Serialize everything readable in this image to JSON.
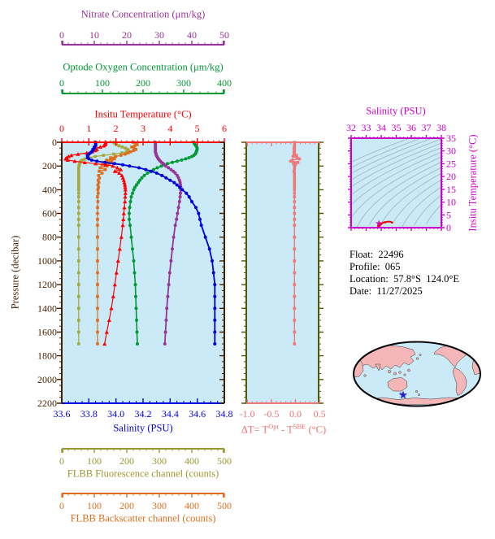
{
  "figure": {
    "axis_titles": {
      "nitrate": "Nitrate Concentration (μm/kg)",
      "oxygen": "Optode Oxygen Concentration (μm/kg)",
      "temperature": "Insitu Temperature (°C)",
      "salinity": "Salinity (PSU)",
      "fluorescence": "FLBB Fluorescence channel (counts)",
      "backscatter": "FLBB Backscatter channel (counts)",
      "pressure": "Pressure (decibar)",
      "ts_salinity": "Salinity (PSU)",
      "ts_temperature": "Insitu Temperature (°C)",
      "delta_t": {
        "p1": "ΔT= T",
        "sup1": "Opt",
        "p2": " - T",
        "sup2": "SBE",
        "p3": " (°C)"
      }
    },
    "info": {
      "lines": [
        "Float:  22496",
        "Profile:  065",
        "Location:  57.8°S  124.0°E",
        "Date:  11/27/2025"
      ]
    }
  },
  "chart_data": {
    "type": "line",
    "title": "Profiling float vertical profiles vs pressure with T-S diagram and location map",
    "pressure_axis": {
      "label": "Pressure (decibar)",
      "min": 0,
      "max": 2200,
      "major_ticks": [
        0,
        200,
        400,
        600,
        800,
        1000,
        1200,
        1400,
        1600,
        1800,
        2000,
        2200
      ],
      "minor_step": 50,
      "color": "#451F00"
    },
    "plot_bg": "#C9EAF6",
    "pressures": [
      0,
      10,
      20,
      30,
      40,
      50,
      60,
      70,
      80,
      90,
      100,
      110,
      120,
      130,
      140,
      150,
      160,
      170,
      180,
      190,
      200,
      215,
      230,
      245,
      260,
      280,
      300,
      320,
      340,
      360,
      380,
      400,
      430,
      460,
      500,
      550,
      600,
      650,
      700,
      800,
      900,
      1000,
      1100,
      1200,
      1300,
      1400,
      1500,
      1600,
      1700
    ],
    "top_axes": [
      {
        "id": "nitrate",
        "min": 0,
        "max": 50,
        "ticks": [
          0,
          10,
          20,
          30,
          40,
          50
        ],
        "minor_step": 2,
        "color": "#993399"
      },
      {
        "id": "oxygen",
        "min": 0,
        "max": 400,
        "ticks": [
          0,
          100,
          200,
          300,
          400
        ],
        "minor_step": 20,
        "color": "#009933"
      },
      {
        "id": "temperature",
        "min": 0,
        "max": 6,
        "ticks": [
          0,
          1,
          2,
          3,
          4,
          5,
          6
        ],
        "minor_step": 0.2,
        "color": "#FF0000"
      }
    ],
    "bottom_axes": [
      {
        "id": "salinity",
        "min": 33.6,
        "max": 34.8,
        "ticks": [
          33.6,
          33.8,
          34.0,
          34.2,
          34.4,
          34.6,
          34.8
        ],
        "minor_step": 0.05,
        "decimals": 1,
        "color": "#0000DD"
      },
      {
        "id": "fluorescence",
        "min": 0,
        "max": 500,
        "ticks": [
          0,
          100,
          200,
          300,
          400,
          500
        ],
        "minor_step": 20,
        "decimals": 0,
        "color": "#999933"
      },
      {
        "id": "backscatter",
        "min": 0,
        "max": 500,
        "ticks": [
          0,
          100,
          200,
          300,
          400,
          500
        ],
        "minor_step": 20,
        "decimals": 0,
        "color": "#DD6E1E"
      }
    ],
    "series": [
      {
        "id": "flbb-fluorescence",
        "marker": "square",
        "color": "#A8A838",
        "xmin": 0,
        "xmax": 500,
        "width": 1.2,
        "values": [
          160,
          163,
          168,
          176,
          186,
          196,
          203,
          205,
          199,
          185,
          160,
          128,
          103,
          84,
          71,
          63,
          59,
          56,
          55,
          54,
          53,
          52,
          52,
          52,
          52,
          52,
          52,
          52,
          52,
          52,
          52,
          52,
          52,
          52,
          52,
          52,
          52,
          52,
          52,
          52,
          52,
          52,
          52,
          52,
          52,
          52,
          52,
          52,
          52
        ]
      },
      {
        "id": "flbb-backscatter",
        "marker": "square",
        "color": "#DD6E1E",
        "xmin": 0,
        "xmax": 500,
        "width": 1.2,
        "values": [
          220,
          228,
          232,
          224,
          215,
          222,
          228,
          221,
          212,
          204,
          195,
          182,
          166,
          150,
          162,
          138,
          154,
          128,
          146,
          124,
          140,
          118,
          134,
          115,
          124,
          113,
          116,
          112,
          114,
          111,
          113,
          111,
          112,
          110,
          111,
          110,
          110,
          110,
          110,
          110,
          110,
          110,
          110,
          110,
          110,
          110,
          110,
          110,
          110
        ]
      },
      {
        "id": "insitu-temperature",
        "marker": "triangle",
        "color": "#FF0000",
        "xmin": 0,
        "xmax": 6,
        "width": 1.2,
        "values": [
          1.62,
          1.62,
          1.6,
          1.55,
          1.42,
          1.22,
          1.3,
          1.24,
          1.12,
          0.92,
          0.6,
          0.35,
          0.25,
          0.18,
          0.14,
          0.22,
          0.48,
          0.85,
          1.25,
          1.62,
          1.88,
          2.05,
          2.18,
          1.96,
          2.12,
          2.22,
          2.26,
          2.29,
          2.31,
          2.33,
          2.34,
          2.35,
          2.35,
          2.34,
          2.33,
          2.31,
          2.29,
          2.27,
          2.25,
          2.2,
          2.14,
          2.08,
          2.02,
          1.96,
          1.9,
          1.83,
          1.75,
          1.66,
          1.58
        ]
      },
      {
        "id": "optode-oxygen",
        "marker": "circle",
        "color": "#009933",
        "xmin": 0,
        "xmax": 400,
        "width": 1.6,
        "values": [
          325,
          326,
          328,
          330,
          332,
          333,
          333,
          332,
          331,
          330,
          328,
          325,
          320,
          313,
          305,
          295,
          284,
          272,
          260,
          252,
          245,
          235,
          226,
          218,
          211,
          203,
          197,
          192,
          188,
          184,
          180,
          177,
          174,
          171,
          169,
          167,
          166,
          166,
          168,
          171,
          174,
          177,
          179,
          181,
          182,
          183,
          184,
          185,
          186
        ]
      },
      {
        "id": "nitrate",
        "marker": "circle",
        "color": "#993399",
        "xmin": 0,
        "xmax": 50,
        "width": 1.8,
        "values": [
          28.8,
          28.8,
          28.8,
          28.8,
          28.8,
          28.8,
          28.8,
          28.8,
          28.8,
          28.9,
          29.0,
          29.1,
          29.3,
          29.5,
          29.7,
          30.0,
          30.3,
          30.7,
          31.2,
          31.6,
          32.0,
          32.8,
          33.6,
          34.3,
          34.9,
          35.5,
          35.9,
          36.2,
          36.4,
          36.5,
          36.6,
          36.6,
          36.5,
          36.4,
          36.2,
          35.9,
          35.6,
          35.3,
          34.9,
          34.4,
          34.0,
          33.6,
          33.2,
          32.9,
          32.6,
          32.3,
          32.1,
          31.9,
          31.7
        ]
      },
      {
        "id": "salinity",
        "marker": "circle",
        "color": "#0000DD",
        "xmin": 33.6,
        "xmax": 34.8,
        "width": 1.8,
        "values": [
          33.85,
          33.85,
          33.85,
          33.85,
          33.84,
          33.84,
          33.83,
          33.83,
          33.82,
          33.81,
          33.8,
          33.79,
          33.79,
          33.79,
          33.8,
          33.82,
          33.86,
          33.92,
          33.99,
          34.05,
          34.1,
          34.17,
          34.22,
          34.26,
          34.3,
          34.34,
          34.37,
          34.4,
          34.43,
          34.45,
          34.47,
          34.49,
          34.52,
          34.54,
          34.56,
          34.59,
          34.61,
          34.62,
          34.63,
          34.66,
          34.69,
          34.71,
          34.72,
          34.73,
          34.73,
          34.73,
          34.73,
          34.73,
          34.73
        ]
      }
    ],
    "delta_panel": {
      "xmin": -1.02,
      "xmax": 0.48,
      "ticks": [
        -1.0,
        -0.5,
        0.0,
        0.5
      ],
      "minor_step": 0.1,
      "decimals": 1,
      "line_color": "#F07878",
      "label_color": "#F07070",
      "frame_color": "#4F5B00",
      "marker": "square",
      "values": [
        -0.02,
        -0.02,
        -0.02,
        -0.02,
        -0.02,
        -0.03,
        -0.02,
        -0.02,
        -0.03,
        -0.02,
        -0.03,
        0.02,
        -0.05,
        0.03,
        0.08,
        -0.06,
        -0.1,
        0.05,
        -0.04,
        0.0,
        -0.02,
        -0.02,
        -0.02,
        -0.03,
        -0.02,
        -0.02,
        -0.02,
        -0.02,
        -0.02,
        -0.02,
        -0.02,
        -0.02,
        -0.02,
        -0.02,
        -0.02,
        -0.02,
        -0.02,
        -0.02,
        -0.02,
        -0.02,
        -0.02,
        -0.02,
        -0.02,
        -0.02,
        -0.02,
        -0.02,
        -0.02,
        -0.02,
        -0.02
      ]
    },
    "ts_panel": {
      "sal_min": 32,
      "sal_max": 38,
      "sal_ticks": [
        32,
        33,
        34,
        35,
        36,
        37,
        38
      ],
      "sal_minor_step": 0.25,
      "temp_min": 0,
      "temp_max": 35,
      "temp_ticks": [
        0,
        5,
        10,
        15,
        20,
        25,
        30,
        35
      ],
      "temp_minor_step": 1,
      "frame_color": "#CC00CC",
      "curve_color": "#EE0000",
      "star_color": "#DD0099",
      "contour_color": "#9FB2BB"
    },
    "float_marker": {
      "lat_label": "57.8°S",
      "lon_label": "124.0°E"
    },
    "map": {
      "land_color": "#F4B6B6",
      "ocean_color": "#C9EAF6",
      "outline_color": "#000000",
      "coast_color": "#3A3A3A",
      "star_color": "#2222DD"
    }
  }
}
